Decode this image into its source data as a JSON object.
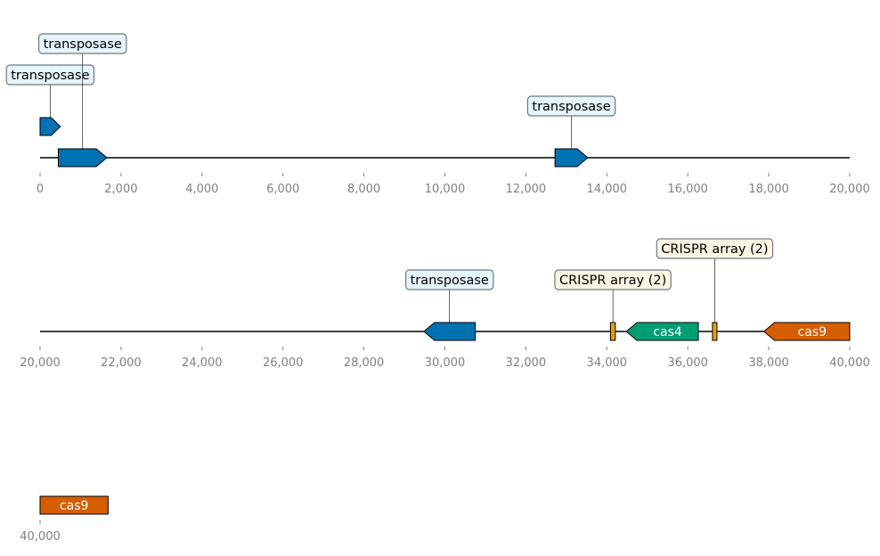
{
  "chart_data": {
    "type": "genome-map",
    "units": "bp",
    "tracks": [
      {
        "start": 0,
        "end": 20000,
        "ticks": [
          {
            "value": 0,
            "label": "0"
          },
          {
            "value": 2000,
            "label": "2,000"
          },
          {
            "value": 4000,
            "label": "4,000"
          },
          {
            "value": 6000,
            "label": "6,000"
          },
          {
            "value": 8000,
            "label": "8,000"
          },
          {
            "value": 10000,
            "label": "10,000"
          },
          {
            "value": 12000,
            "label": "12,000"
          },
          {
            "value": 14000,
            "label": "14,000"
          },
          {
            "value": 16000,
            "label": "16,000"
          },
          {
            "value": 18000,
            "label": "18,000"
          },
          {
            "value": 20000,
            "label": "20,000"
          }
        ],
        "features": [
          {
            "name": "transposase",
            "start": 0,
            "end": 500,
            "strand": 1,
            "level": 1,
            "color": "#0072b2",
            "label_mode": "box",
            "label_level": 2
          },
          {
            "name": "transposase",
            "start": 450,
            "end": 1650,
            "strand": 1,
            "level": 0,
            "color": "#0072b2",
            "label_mode": "box",
            "label_level": 3
          },
          {
            "name": "transposase",
            "start": 12720,
            "end": 13530,
            "strand": 1,
            "level": 0,
            "color": "#0072b2",
            "label_mode": "box",
            "label_level": 1
          }
        ]
      },
      {
        "start": 20000,
        "end": 40000,
        "ticks": [
          {
            "value": 20000,
            "label": "20,000"
          },
          {
            "value": 22000,
            "label": "22,000"
          },
          {
            "value": 24000,
            "label": "24,000"
          },
          {
            "value": 26000,
            "label": "26,000"
          },
          {
            "value": 28000,
            "label": "28,000"
          },
          {
            "value": 30000,
            "label": "30,000"
          },
          {
            "value": 32000,
            "label": "32,000"
          },
          {
            "value": 34000,
            "label": "34,000"
          },
          {
            "value": 36000,
            "label": "36,000"
          },
          {
            "value": 38000,
            "label": "38,000"
          },
          {
            "value": 40000,
            "label": "40,000"
          }
        ],
        "features": [
          {
            "name": "transposase",
            "start": 29480,
            "end": 30750,
            "strand": -1,
            "level": 0,
            "color": "#0072b2",
            "label_mode": "box",
            "label_level": 1
          },
          {
            "name": "CRISPR array (2)",
            "start": 34090,
            "end": 34210,
            "strand": 0,
            "level": 0,
            "color": "#e69f00",
            "label_mode": "box",
            "label_level": 1
          },
          {
            "name": "cas4",
            "start": 34480,
            "end": 36260,
            "strand": -1,
            "level": 0,
            "color": "#009e73",
            "label_mode": "inline"
          },
          {
            "name": "CRISPR array (2)",
            "start": 36610,
            "end": 36720,
            "strand": 0,
            "level": 0,
            "color": "#e69f00",
            "label_mode": "box",
            "label_level": 2
          },
          {
            "name": "cas9",
            "start": 37880,
            "end": 40000,
            "strand": -1,
            "level": 0,
            "color": "#d55e00",
            "label_mode": "inline"
          }
        ]
      },
      {
        "start": 40000,
        "end": 60000,
        "ticks": [
          {
            "value": 40000,
            "label": "40,000"
          }
        ],
        "features": [
          {
            "name": "cas9",
            "start": 40000,
            "end": 41680,
            "strand": 0,
            "level": 0,
            "color": "#d55e00",
            "label_mode": "inline"
          }
        ]
      }
    ]
  }
}
